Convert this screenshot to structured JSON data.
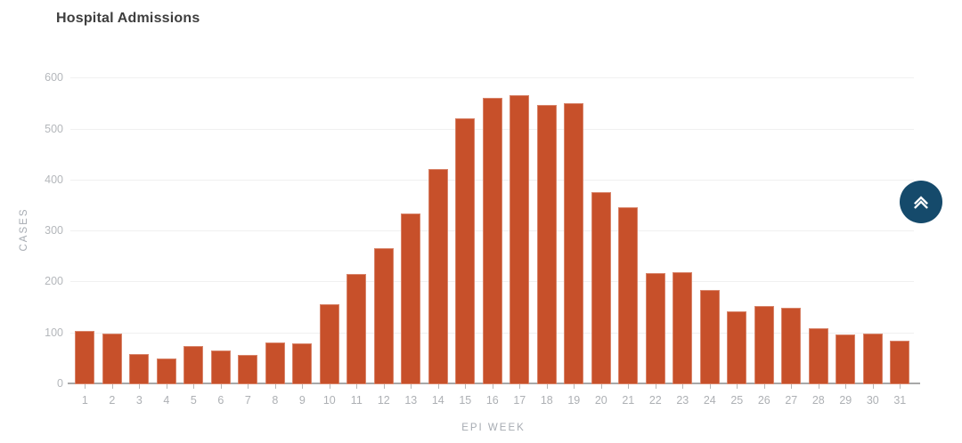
{
  "chart_data": {
    "type": "bar",
    "title": "Hospital Admissions",
    "xlabel": "EPI WEEK",
    "ylabel": "CASES",
    "categories": [
      "1",
      "2",
      "3",
      "4",
      "5",
      "6",
      "7",
      "8",
      "9",
      "10",
      "11",
      "12",
      "13",
      "14",
      "15",
      "16",
      "17",
      "18",
      "19",
      "20",
      "21",
      "22",
      "23",
      "24",
      "25",
      "26",
      "27",
      "28",
      "29",
      "30",
      "31"
    ],
    "values": [
      105,
      100,
      60,
      50,
      76,
      67,
      58,
      83,
      80,
      158,
      216,
      267,
      336,
      423,
      522,
      563,
      567,
      548,
      551,
      377,
      347,
      218,
      220,
      186,
      144,
      153,
      150,
      110,
      97,
      100,
      85
    ],
    "ylim": [
      0,
      600
    ],
    "yticks": [
      0,
      100,
      200,
      300,
      400,
      500,
      600
    ],
    "grid": "horizontal",
    "legend": "none",
    "bar_color": "#C7502A"
  },
  "style": {
    "background": "#FFFFFF",
    "title_color": "#3E3E3E",
    "axis_line_color": "#A8A8A8",
    "grid_line_color": "#F0F0F0",
    "tick_label_color": "#B4B7BB",
    "axis_title_color": "#A6ABB2"
  },
  "scroll_top_button": {
    "icon": "chevron-double-up-icon",
    "background": "#154A6B",
    "icon_color": "#FFFFFF"
  }
}
